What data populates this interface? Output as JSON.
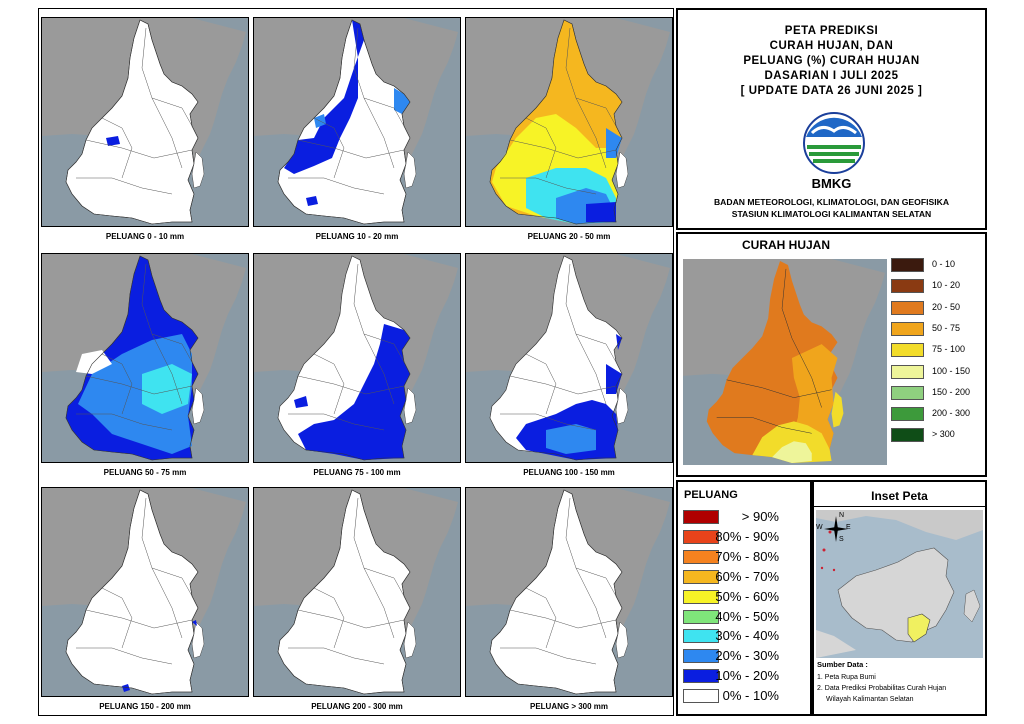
{
  "title_lines": [
    "PETA PREDIKSI",
    "CURAH HUJAN, DAN",
    "PELUANG (%) CURAH HUJAN",
    "DASARIAN I JULI 2025",
    "[ UPDATE DATA 26 JUNI 2025 ]"
  ],
  "logo_text": "BMKG",
  "org_lines": [
    "BADAN METEOROLOGI, KLIMATOLOGI, DAN GEOFISIKA",
    "STASIUN KLIMATOLOGI KALIMANTAN SELATAN"
  ],
  "panels": [
    {
      "caption": "PELUANG 0 - 10 mm"
    },
    {
      "caption": "PELUANG 10 - 20 mm"
    },
    {
      "caption": "PELUANG 20 - 50 mm"
    },
    {
      "caption": "PELUANG 50 - 75 mm"
    },
    {
      "caption": "PELUANG 75 - 100 mm"
    },
    {
      "caption": "PELUANG 100 - 150 mm"
    },
    {
      "caption": "PELUANG 150 - 200 mm"
    },
    {
      "caption": "PELUANG 200 - 300 mm"
    },
    {
      "caption": "PELUANG > 300 mm"
    }
  ],
  "curah_hujan": {
    "title": "CURAH HUJAN",
    "legend": [
      {
        "label": "0 - 10",
        "color": "#3b1a0e"
      },
      {
        "label": "10 - 20",
        "color": "#8a3a12"
      },
      {
        "label": "20 - 50",
        "color": "#e07a1e"
      },
      {
        "label": "50 - 75",
        "color": "#f0a51c"
      },
      {
        "label": "75 - 100",
        "color": "#f2dc2a"
      },
      {
        "label": "100 - 150",
        "color": "#eef59a"
      },
      {
        "label": "150 - 200",
        "color": "#8fd07f"
      },
      {
        "label": "200 - 300",
        "color": "#3d9a3b"
      },
      {
        "label": "> 300",
        "color": "#0f4d17"
      }
    ]
  },
  "peluang": {
    "title": "PELUANG",
    "legend": [
      {
        "label": "> 90%",
        "color": "#b00000"
      },
      {
        "label": "80% - 90%",
        "color": "#e8431a"
      },
      {
        "label": "70% - 80%",
        "color": "#f5821f"
      },
      {
        "label": "60% - 70%",
        "color": "#f5b71f"
      },
      {
        "label": "50% - 60%",
        "color": "#f7f326"
      },
      {
        "label": "40% - 50%",
        "color": "#7fe57a"
      },
      {
        "label": "30% - 40%",
        "color": "#3fe3f0"
      },
      {
        "label": "20% - 30%",
        "color": "#2e88f0"
      },
      {
        "label": "10% - 20%",
        "color": "#0a1ee0"
      },
      {
        "label": "0% - 10%",
        "color": "#ffffff"
      }
    ]
  },
  "inset": {
    "title": "Inset Peta",
    "compass": {
      "n": "N",
      "s": "S",
      "e": "E",
      "w": "W"
    },
    "source_title": "Sumber Data :",
    "sources": [
      "1. Peta Rupa Bumi",
      "2. Data Prediksi Probabilitas Curah Hujan",
      "Wilayah Kalimantan Selatan"
    ]
  }
}
